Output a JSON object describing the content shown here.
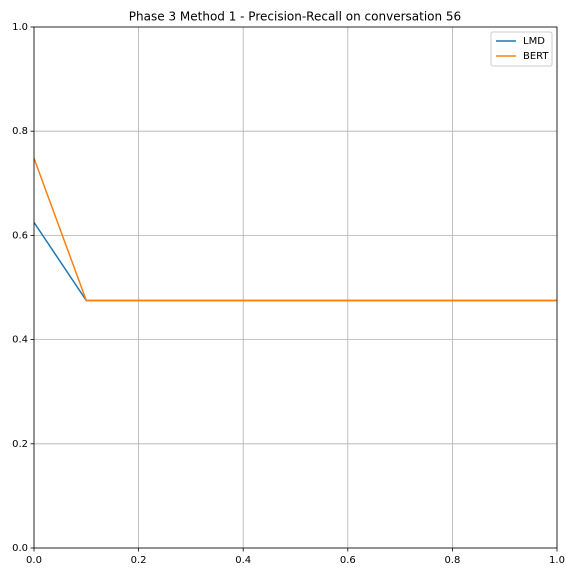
{
  "chart_data": {
    "type": "line",
    "title": "Phase 3 Method 1 - Precision-Recall on conversation 56",
    "x": [
      0,
      0.1,
      1.0
    ],
    "series": [
      {
        "name": "LMD",
        "color": "#1f77b4",
        "values": [
          0.625,
          0.475,
          0.475
        ]
      },
      {
        "name": "BERT",
        "color": "#ff7f0e",
        "values": [
          0.748,
          0.475,
          0.475
        ]
      }
    ],
    "xlim": [
      0,
      1
    ],
    "ylim": [
      0,
      1
    ],
    "xticks": [
      {
        "value": 0,
        "label": "0.0"
      },
      0.2,
      0.4,
      0.6,
      0.8,
      {
        "value": 1,
        "label": "1.0"
      }
    ],
    "yticks": [
      {
        "value": 0,
        "label": "0.0"
      },
      0.2,
      0.4,
      0.6,
      0.8,
      {
        "value": 1,
        "label": "1.0"
      }
    ],
    "grid": true,
    "legend": "upper right"
  }
}
